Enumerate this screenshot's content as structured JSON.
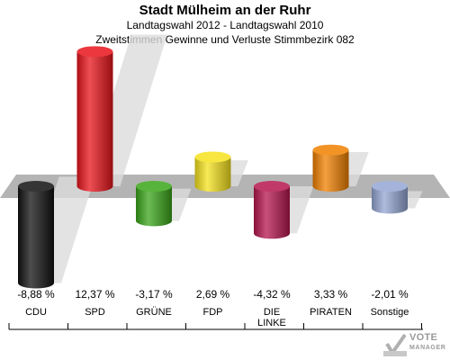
{
  "header": {
    "title": "Stadt Mülheim an der Ruhr",
    "subtitle": "Landtagswahl 2012 - Landtagswahl 2010",
    "subtitle2": "Zweitstimmen Gewinne und Verluste Stimmbezirk 082"
  },
  "logo": {
    "line1": "VOTE",
    "line2": "MANAGER",
    "icon": "checkmark-ballot-icon"
  },
  "chart_data": {
    "type": "bar",
    "title": "Stadt Mülheim an der Ruhr",
    "subtitle": "Landtagswahl 2012 - Landtagswahl 2010 / Zweitstimmen Gewinne und Verluste Stimmbezirk 082",
    "categories": [
      "CDU",
      "SPD",
      "GRÜNE",
      "FDP",
      "DIE LINKE",
      "PIRATEN",
      "Sonstige"
    ],
    "category_lines": [
      [
        "CDU"
      ],
      [
        "SPD"
      ],
      [
        "GRÜNE"
      ],
      [
        "FDP"
      ],
      [
        "DIE",
        "LINKE"
      ],
      [
        "PIRATEN"
      ],
      [
        "Sonstige"
      ]
    ],
    "values": [
      -8.88,
      12.37,
      -3.17,
      2.69,
      -4.32,
      3.33,
      -2.01
    ],
    "value_labels": [
      "-8,88 %",
      "12,37 %",
      "-3,17 %",
      "2,69 %",
      "-4,32 %",
      "3,33 %",
      "-2,01 %"
    ],
    "colors": [
      "#111111",
      "#e8141b",
      "#3aa51a",
      "#f5e21d",
      "#b5164e",
      "#f08000",
      "#94a5d2"
    ],
    "unit": "%",
    "grid": false
  }
}
